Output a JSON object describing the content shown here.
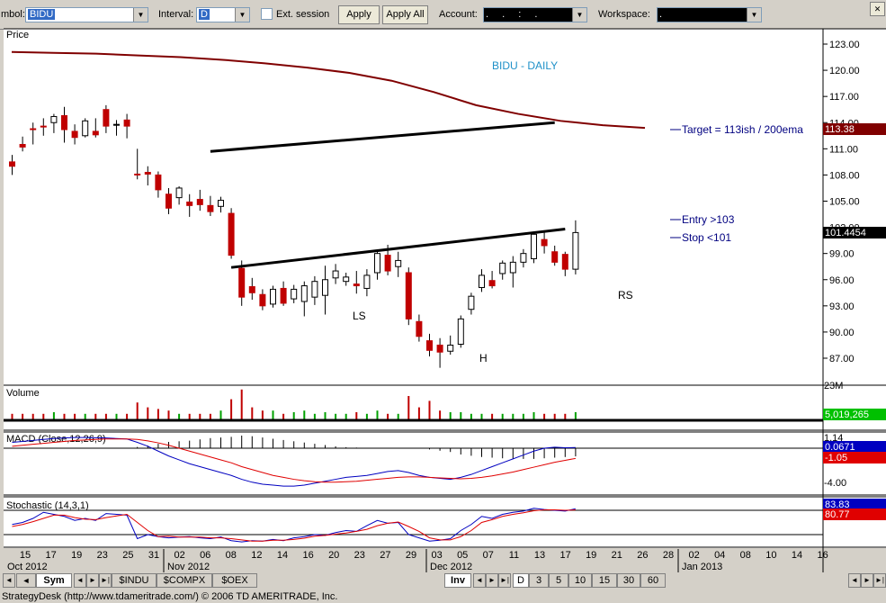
{
  "toolbar": {
    "symbol_label": "mbol:",
    "symbol_value": "BIDU",
    "interval_label": "Interval:",
    "interval_value": "D",
    "ext_session_label": "Ext. session",
    "apply_label": "Apply",
    "apply_all_label": "Apply All",
    "account_label": "Account:",
    "account_value": ". . : .",
    "workspace_label": "Workspace:",
    "workspace_value": "."
  },
  "price_panel": {
    "label": "Price",
    "title": "BIDU - DAILY",
    "yticks": [
      "123.00",
      "120.00",
      "117.00",
      "114.00",
      "111.00",
      "108.00",
      "105.00",
      "102.00",
      "99.00",
      "96.00",
      "93.00",
      "90.00",
      "87.00"
    ],
    "ma_badge": "113.38",
    "last_badge": "101.4454",
    "annotations": {
      "target": "Target = 113ish / 200ema",
      "entry": "Entry >103",
      "stop": "Stop <101",
      "ls": "LS",
      "h": "H",
      "rs": "RS"
    }
  },
  "volume_panel": {
    "label": "Volume",
    "badge": "5,019,265",
    "top_tick": "23M"
  },
  "macd_panel": {
    "label": "MACD (Close,12,26,9)",
    "ticks": [
      "1.14",
      "-1.05",
      "-4.00"
    ],
    "badge_blue": "0.0671",
    "badge_red": "-1.05"
  },
  "stoch_panel": {
    "label": "Stochastic (14,3,1)",
    "badge_blue": "83.83",
    "badge_red": "80.77"
  },
  "x_axis": {
    "days": [
      "15",
      "17",
      "19",
      "23",
      "25",
      "31",
      "02",
      "06",
      "08",
      "12",
      "14",
      "16",
      "20",
      "23",
      "27",
      "29",
      "03",
      "05",
      "07",
      "11",
      "13",
      "17",
      "19",
      "21",
      "26",
      "28",
      "02",
      "04",
      "08",
      "10",
      "14",
      "16"
    ],
    "months": [
      {
        "label": "Oct 2012"
      },
      {
        "label": "Nov 2012"
      },
      {
        "label": "Dec 2012"
      },
      {
        "label": "Jan 2013"
      }
    ]
  },
  "bottom_bar": {
    "sym_tab": "Sym",
    "tabs": [
      "$INDU",
      "$COMPX",
      "$OEX"
    ],
    "inv_tab": "Inv",
    "intervals": [
      "D",
      "3",
      "5",
      "10",
      "15",
      "30",
      "60"
    ]
  },
  "status_bar": {
    "text": "StrategyDesk (http://www.tdameritrade.com/) © 2006 TD AMERITRADE, Inc."
  },
  "chart_data": {
    "type": "candlestick",
    "title": "BIDU - DAILY",
    "ylim": [
      85,
      124.5
    ],
    "candles": [
      {
        "o": 109.5,
        "h": 110.3,
        "l": 108.0,
        "c": 109.0
      },
      {
        "o": 111.5,
        "h": 112.4,
        "l": 110.7,
        "c": 111.2
      },
      {
        "o": 113.3,
        "h": 114.0,
        "l": 111.5,
        "c": 113.2
      },
      {
        "o": 113.6,
        "h": 114.5,
        "l": 112.5,
        "c": 113.5
      },
      {
        "o": 114.0,
        "h": 115.0,
        "l": 112.8,
        "c": 114.7
      },
      {
        "o": 114.8,
        "h": 115.8,
        "l": 111.7,
        "c": 113.2
      },
      {
        "o": 113.0,
        "h": 113.8,
        "l": 111.5,
        "c": 112.3
      },
      {
        "o": 112.5,
        "h": 114.5,
        "l": 112.3,
        "c": 114.2
      },
      {
        "o": 113.0,
        "h": 114.5,
        "l": 112.3,
        "c": 112.6
      },
      {
        "o": 115.5,
        "h": 116.0,
        "l": 112.8,
        "c": 113.6
      },
      {
        "o": 113.7,
        "h": 114.3,
        "l": 112.5,
        "c": 113.8
      },
      {
        "o": 114.3,
        "h": 115.0,
        "l": 112.2,
        "c": 113.6
      },
      {
        "o": 108.1,
        "h": 111.0,
        "l": 107.5,
        "c": 108.0
      },
      {
        "o": 108.3,
        "h": 109.0,
        "l": 106.8,
        "c": 108.1
      },
      {
        "o": 108.0,
        "h": 108.4,
        "l": 105.4,
        "c": 106.3
      },
      {
        "o": 105.8,
        "h": 106.5,
        "l": 103.5,
        "c": 104.2
      },
      {
        "o": 105.4,
        "h": 106.7,
        "l": 104.6,
        "c": 106.5
      },
      {
        "o": 104.9,
        "h": 105.8,
        "l": 103.2,
        "c": 104.5
      },
      {
        "o": 105.2,
        "h": 106.3,
        "l": 103.9,
        "c": 104.6
      },
      {
        "o": 104.5,
        "h": 105.6,
        "l": 103.3,
        "c": 103.8
      },
      {
        "o": 104.4,
        "h": 105.5,
        "l": 103.7,
        "c": 105.1
      },
      {
        "o": 103.6,
        "h": 104.2,
        "l": 98.4,
        "c": 98.8
      },
      {
        "o": 97.3,
        "h": 98.2,
        "l": 93.0,
        "c": 94.0
      },
      {
        "o": 95.2,
        "h": 96.2,
        "l": 93.7,
        "c": 94.5
      },
      {
        "o": 94.3,
        "h": 94.9,
        "l": 92.5,
        "c": 93.0
      },
      {
        "o": 93.2,
        "h": 95.3,
        "l": 92.8,
        "c": 94.9
      },
      {
        "o": 95.0,
        "h": 95.8,
        "l": 93.0,
        "c": 93.3
      },
      {
        "o": 93.8,
        "h": 95.4,
        "l": 93.3,
        "c": 94.9
      },
      {
        "o": 93.5,
        "h": 95.8,
        "l": 91.8,
        "c": 95.3
      },
      {
        "o": 94.0,
        "h": 96.4,
        "l": 93.1,
        "c": 95.8
      },
      {
        "o": 94.2,
        "h": 97.6,
        "l": 92.0,
        "c": 96.0
      },
      {
        "o": 96.2,
        "h": 97.8,
        "l": 95.5,
        "c": 97.0
      },
      {
        "o": 95.8,
        "h": 96.8,
        "l": 95.3,
        "c": 96.3
      },
      {
        "o": 95.5,
        "h": 97.0,
        "l": 94.4,
        "c": 95.3
      },
      {
        "o": 95.0,
        "h": 97.2,
        "l": 94.1,
        "c": 96.5
      },
      {
        "o": 96.8,
        "h": 99.4,
        "l": 96.0,
        "c": 99.0
      },
      {
        "o": 98.8,
        "h": 100.0,
        "l": 96.5,
        "c": 97.0
      },
      {
        "o": 97.5,
        "h": 99.2,
        "l": 96.3,
        "c": 98.2
      },
      {
        "o": 96.8,
        "h": 97.4,
        "l": 90.8,
        "c": 91.5
      },
      {
        "o": 91.2,
        "h": 92.0,
        "l": 88.9,
        "c": 89.5
      },
      {
        "o": 89.0,
        "h": 89.8,
        "l": 87.2,
        "c": 87.9
      },
      {
        "o": 88.5,
        "h": 89.3,
        "l": 85.9,
        "c": 87.7
      },
      {
        "o": 87.8,
        "h": 89.6,
        "l": 87.4,
        "c": 88.5
      },
      {
        "o": 88.6,
        "h": 91.9,
        "l": 88.2,
        "c": 91.5
      },
      {
        "o": 92.6,
        "h": 94.5,
        "l": 92.0,
        "c": 94.1
      },
      {
        "o": 95.1,
        "h": 97.2,
        "l": 94.6,
        "c": 96.5
      },
      {
        "o": 95.9,
        "h": 97.0,
        "l": 95.0,
        "c": 95.3
      },
      {
        "o": 96.7,
        "h": 98.2,
        "l": 96.0,
        "c": 97.9
      },
      {
        "o": 96.8,
        "h": 98.7,
        "l": 95.1,
        "c": 98.0
      },
      {
        "o": 98.0,
        "h": 99.5,
        "l": 97.4,
        "c": 99.0
      },
      {
        "o": 98.4,
        "h": 101.5,
        "l": 97.9,
        "c": 101.2
      },
      {
        "o": 100.6,
        "h": 101.5,
        "l": 99.0,
        "c": 99.9
      },
      {
        "o": 99.2,
        "h": 99.9,
        "l": 97.6,
        "c": 98.0
      },
      {
        "o": 98.9,
        "h": 99.2,
        "l": 96.4,
        "c": 97.2
      },
      {
        "o": 97.2,
        "h": 102.8,
        "l": 96.6,
        "c": 101.4
      }
    ],
    "ema200": [
      122.1,
      122.0,
      121.9,
      121.7,
      121.5,
      121.2,
      120.8,
      120.3,
      119.7,
      118.8,
      117.5,
      116.0,
      115.0,
      114.2,
      113.7,
      113.4
    ],
    "trendlines": [
      {
        "from": [
          19,
          110.7
        ],
        "to": [
          52,
          114.0
        ]
      },
      {
        "from": [
          21,
          97.4
        ],
        "to": [
          53,
          101.8
        ]
      }
    ],
    "volume_ratio": [
      0.2,
      0.2,
      0.2,
      0.2,
      0.25,
      0.2,
      0.2,
      0.2,
      0.2,
      0.2,
      0.2,
      0.2,
      0.55,
      0.4,
      0.35,
      0.3,
      0.2,
      0.2,
      0.2,
      0.2,
      0.3,
      0.65,
      0.95,
      0.4,
      0.3,
      0.3,
      0.2,
      0.25,
      0.3,
      0.2,
      0.25,
      0.2,
      0.2,
      0.25,
      0.2,
      0.3,
      0.2,
      0.2,
      0.75,
      0.4,
      0.6,
      0.3,
      0.25,
      0.25,
      0.2,
      0.2,
      0.2,
      0.2,
      0.2,
      0.2,
      0.25,
      0.2,
      0.2,
      0.2,
      0.25
    ],
    "macd_hist": [
      0,
      0,
      0,
      0,
      0,
      0,
      0,
      0,
      0,
      0,
      0,
      0,
      0.1,
      0.2,
      0.35,
      0.5,
      0.55,
      0.6,
      0.7,
      0.8,
      0.85,
      0.9,
      1.0,
      0.95,
      0.85,
      0.75,
      0.65,
      0.55,
      0.45,
      0.35,
      0.25,
      0.15,
      0.08,
      0.05,
      0,
      0,
      0,
      0,
      0,
      0,
      -0.1,
      -0.2,
      -0.3,
      -0.5,
      -0.6,
      -0.7,
      -0.75,
      -0.8,
      -0.82,
      -0.85,
      -0.85,
      -0.8,
      -0.75,
      -0.7,
      -0.65
    ],
    "macd_line": [
      0.6,
      0.7,
      0.8,
      0.9,
      1.0,
      1.05,
      1.1,
      1.1,
      1.08,
      1.05,
      1.0,
      0.95,
      0.6,
      0.2,
      -0.3,
      -0.8,
      -1.2,
      -1.6,
      -1.9,
      -2.2,
      -2.5,
      -2.8,
      -3.2,
      -3.5,
      -3.7,
      -3.8,
      -3.9,
      -3.9,
      -3.8,
      -3.6,
      -3.4,
      -3.2,
      -3.0,
      -2.9,
      -2.8,
      -2.6,
      -2.4,
      -2.3,
      -2.5,
      -2.8,
      -3.0,
      -3.1,
      -3.2,
      -3.0,
      -2.7,
      -2.3,
      -1.9,
      -1.5,
      -1.1,
      -0.7,
      -0.3,
      0.0,
      0.1,
      0.05,
      0.07
    ],
    "macd_signal": [
      0.2,
      0.3,
      0.4,
      0.5,
      0.6,
      0.7,
      0.8,
      0.85,
      0.9,
      0.95,
      0.95,
      0.95,
      0.9,
      0.75,
      0.55,
      0.3,
      0.0,
      -0.3,
      -0.6,
      -0.9,
      -1.2,
      -1.5,
      -1.9,
      -2.2,
      -2.5,
      -2.8,
      -3.0,
      -3.2,
      -3.35,
      -3.45,
      -3.5,
      -3.5,
      -3.45,
      -3.4,
      -3.3,
      -3.2,
      -3.1,
      -3.0,
      -2.95,
      -2.95,
      -3.0,
      -3.05,
      -3.1,
      -3.15,
      -3.1,
      -3.0,
      -2.85,
      -2.65,
      -2.45,
      -2.2,
      -1.95,
      -1.7,
      -1.45,
      -1.25,
      -1.05
    ],
    "stoch_k": [
      45,
      50,
      60,
      75,
      70,
      65,
      55,
      60,
      55,
      72,
      70,
      68,
      10,
      20,
      15,
      12,
      14,
      15,
      12,
      10,
      14,
      5,
      2,
      5,
      4,
      8,
      5,
      12,
      15,
      20,
      18,
      25,
      30,
      28,
      42,
      55,
      48,
      50,
      20,
      12,
      4,
      6,
      10,
      30,
      45,
      65,
      60,
      70,
      75,
      78,
      85,
      82,
      80,
      78,
      84
    ],
    "stoch_d": [
      40,
      45,
      52,
      60,
      68,
      68,
      62,
      58,
      57,
      62,
      66,
      70,
      50,
      30,
      15,
      16,
      14,
      14,
      14,
      12,
      12,
      10,
      7,
      4,
      4,
      6,
      6,
      8,
      11,
      16,
      18,
      21,
      24,
      28,
      33,
      42,
      48,
      51,
      40,
      28,
      12,
      7,
      7,
      15,
      30,
      50,
      57,
      65,
      70,
      74,
      79,
      81,
      81,
      80,
      81
    ]
  }
}
